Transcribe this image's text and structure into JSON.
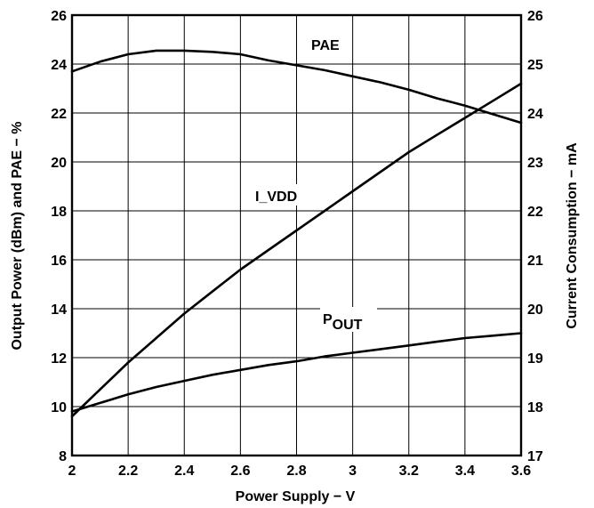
{
  "chart_data": {
    "type": "line",
    "xlabel": "Power Supply − V",
    "ylabel_left": "Output Power (dBm) and PAE − %",
    "ylabel_right": "Current Consumption − mA",
    "x_ticks": [
      "2",
      "2.2",
      "2.4",
      "2.6",
      "2.8",
      "3",
      "3.2",
      "3.4",
      "3.6"
    ],
    "y_left_ticks": [
      "8",
      "10",
      "12",
      "14",
      "16",
      "18",
      "20",
      "22",
      "24",
      "26"
    ],
    "y_right_ticks": [
      "17",
      "18",
      "19",
      "20",
      "21",
      "22",
      "23",
      "24",
      "25",
      "26"
    ],
    "xlim": [
      2,
      3.6
    ],
    "ylim_left": [
      8,
      26
    ],
    "ylim_right": [
      17,
      26
    ],
    "grid": true,
    "series": [
      {
        "name": "PAE",
        "axis": "left",
        "x": [
          2.0,
          2.1,
          2.2,
          2.3,
          2.4,
          2.5,
          2.6,
          2.7,
          2.8,
          2.9,
          3.0,
          3.1,
          3.2,
          3.3,
          3.4,
          3.5,
          3.6
        ],
        "y": [
          23.7,
          24.1,
          24.4,
          24.55,
          24.55,
          24.5,
          24.4,
          24.15,
          23.95,
          23.75,
          23.5,
          23.25,
          22.95,
          22.6,
          22.3,
          21.95,
          21.6
        ]
      },
      {
        "name": "I_VDD",
        "axis": "right",
        "x": [
          2.0,
          2.1,
          2.2,
          2.3,
          2.4,
          2.5,
          2.6,
          2.7,
          2.8,
          2.9,
          3.0,
          3.1,
          3.2,
          3.3,
          3.4,
          3.5,
          3.6
        ],
        "y": [
          17.8,
          18.35,
          18.9,
          19.4,
          19.9,
          20.35,
          20.8,
          21.2,
          21.6,
          22.0,
          22.4,
          22.8,
          23.2,
          23.55,
          23.9,
          24.25,
          24.6
        ]
      },
      {
        "name": "P_OUT",
        "axis": "left",
        "x": [
          2.0,
          2.1,
          2.2,
          2.3,
          2.4,
          2.5,
          2.6,
          2.7,
          2.8,
          2.9,
          3.0,
          3.1,
          3.2,
          3.3,
          3.4,
          3.5,
          3.6
        ],
        "y": [
          9.8,
          10.15,
          10.5,
          10.8,
          11.05,
          11.3,
          11.5,
          11.7,
          11.85,
          12.05,
          12.2,
          12.35,
          12.5,
          12.65,
          12.8,
          12.9,
          13.0
        ]
      }
    ],
    "labels": {
      "pae": "PAE",
      "ivdd": "I_VDD",
      "pout_main": "P",
      "pout_sub": "OUT"
    }
  }
}
